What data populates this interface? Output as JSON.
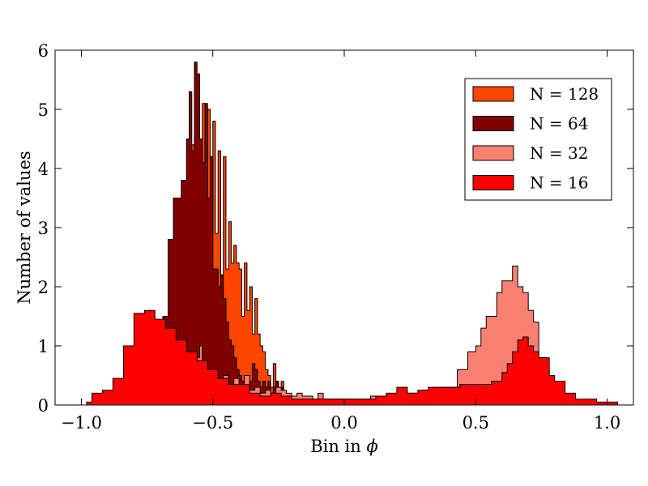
{
  "chart_data": {
    "type": "area",
    "title": "",
    "xlabel": "Bin in ",
    "xlabel_symbol": "ϕ",
    "ylabel": "Number of values",
    "xlim": [
      -1.1,
      1.1
    ],
    "ylim": [
      0,
      6
    ],
    "x_ticks": [
      -1.0,
      -0.5,
      0.0,
      0.5,
      1.0
    ],
    "x_tick_labels": [
      "−1.0",
      "−0.5",
      "0.0",
      "0.5",
      "1.0"
    ],
    "y_ticks": [
      0,
      1,
      2,
      3,
      4,
      5,
      6
    ],
    "y_tick_labels": [
      "0",
      "1",
      "2",
      "3",
      "4",
      "5",
      "6"
    ],
    "grid": false,
    "legend_position": "top-right",
    "style": "step-filled histogram",
    "series": [
      {
        "name": "N = 128",
        "color": "#ff4500",
        "points": [
          [
            -0.62,
            0.0
          ],
          [
            -0.6,
            2.2
          ],
          [
            -0.59,
            3.9
          ],
          [
            -0.58,
            4.4
          ],
          [
            -0.57,
            4.6
          ],
          [
            -0.56,
            4.1
          ],
          [
            -0.55,
            2.9
          ],
          [
            -0.54,
            5.1
          ],
          [
            -0.53,
            2.3
          ],
          [
            -0.52,
            5.0
          ],
          [
            -0.51,
            2.3
          ],
          [
            -0.5,
            4.8
          ],
          [
            -0.49,
            2.9
          ],
          [
            -0.48,
            4.3
          ],
          [
            -0.47,
            2.2
          ],
          [
            -0.46,
            4.2
          ],
          [
            -0.45,
            2.3
          ],
          [
            -0.44,
            3.1
          ],
          [
            -0.43,
            2.4
          ],
          [
            -0.42,
            2.7
          ],
          [
            -0.41,
            2.4
          ],
          [
            -0.4,
            2.3
          ],
          [
            -0.39,
            1.5
          ],
          [
            -0.38,
            2.4
          ],
          [
            -0.37,
            1.6
          ],
          [
            -0.36,
            2.0
          ],
          [
            -0.35,
            1.2
          ],
          [
            -0.34,
            1.8
          ],
          [
            -0.33,
            1.2
          ],
          [
            -0.32,
            1.0
          ],
          [
            -0.31,
            0.9
          ],
          [
            -0.3,
            0.6
          ],
          [
            -0.29,
            0.5
          ],
          [
            -0.28,
            0.3
          ],
          [
            -0.27,
            0.7
          ],
          [
            -0.26,
            0.4
          ],
          [
            -0.25,
            0.2
          ],
          [
            -0.24,
            0.4
          ],
          [
            -0.23,
            0.0
          ]
        ]
      },
      {
        "name": "N = 64",
        "color": "#800000",
        "points": [
          [
            -0.7,
            0.0
          ],
          [
            -0.69,
            1.5
          ],
          [
            -0.67,
            2.8
          ],
          [
            -0.65,
            3.5
          ],
          [
            -0.63,
            3.5
          ],
          [
            -0.62,
            3.8
          ],
          [
            -0.6,
            4.5
          ],
          [
            -0.59,
            5.3
          ],
          [
            -0.58,
            4.3
          ],
          [
            -0.57,
            5.8
          ],
          [
            -0.56,
            5.6
          ],
          [
            -0.55,
            4.5
          ],
          [
            -0.54,
            4.1
          ],
          [
            -0.53,
            5.1
          ],
          [
            -0.52,
            3.5
          ],
          [
            -0.51,
            4.2
          ],
          [
            -0.5,
            2.3
          ],
          [
            -0.49,
            2.3
          ],
          [
            -0.48,
            2.0
          ],
          [
            -0.47,
            2.2
          ],
          [
            -0.46,
            1.8
          ],
          [
            -0.45,
            1.4
          ],
          [
            -0.44,
            1.1
          ],
          [
            -0.43,
            1.0
          ],
          [
            -0.42,
            0.8
          ],
          [
            -0.41,
            0.6
          ],
          [
            -0.4,
            0.5
          ],
          [
            -0.39,
            0.4
          ],
          [
            -0.38,
            0.4
          ],
          [
            -0.37,
            0.2
          ],
          [
            -0.36,
            0.4
          ],
          [
            -0.35,
            0.7
          ],
          [
            -0.34,
            0.6
          ],
          [
            -0.33,
            0.4
          ],
          [
            -0.32,
            0.3
          ],
          [
            -0.31,
            0.4
          ],
          [
            -0.3,
            0.3
          ],
          [
            -0.29,
            0.4
          ],
          [
            -0.28,
            0.2
          ],
          [
            -0.27,
            0.3
          ],
          [
            -0.26,
            0.4
          ],
          [
            -0.25,
            0.2
          ],
          [
            -0.24,
            0.3
          ],
          [
            -0.23,
            0.0
          ]
        ]
      },
      {
        "name": "N = 32",
        "color": "#fa8072",
        "points": [
          [
            -0.75,
            0.0
          ],
          [
            -0.74,
            1.2
          ],
          [
            -0.7,
            1.1
          ],
          [
            -0.66,
            1.0
          ],
          [
            -0.62,
            0.9
          ],
          [
            -0.58,
            0.8
          ],
          [
            -0.55,
            1.0
          ],
          [
            -0.54,
            0.7
          ],
          [
            -0.52,
            0.6
          ],
          [
            -0.5,
            0.5
          ],
          [
            -0.48,
            0.3
          ],
          [
            -0.46,
            0.5
          ],
          [
            -0.44,
            0.35
          ],
          [
            -0.42,
            0.45
          ],
          [
            -0.4,
            0.3
          ],
          [
            -0.38,
            0.5
          ],
          [
            -0.36,
            0.25
          ],
          [
            -0.34,
            0.3
          ],
          [
            -0.32,
            0.2
          ],
          [
            -0.3,
            0.25
          ],
          [
            -0.28,
            0.2
          ],
          [
            -0.26,
            0.3
          ],
          [
            -0.24,
            0.25
          ],
          [
            -0.22,
            0.2
          ],
          [
            -0.2,
            0.15
          ],
          [
            -0.18,
            0.2
          ],
          [
            -0.16,
            0.15
          ],
          [
            -0.14,
            0.15
          ],
          [
            -0.12,
            0.1
          ],
          [
            -0.1,
            0.2
          ],
          [
            -0.08,
            0.1
          ],
          [
            0.0,
            0.1
          ],
          [
            0.1,
            0.15
          ],
          [
            0.2,
            0.2
          ],
          [
            0.3,
            0.25
          ],
          [
            0.36,
            0.3
          ],
          [
            0.4,
            0.3
          ],
          [
            0.43,
            0.6
          ],
          [
            0.45,
            0.6
          ],
          [
            0.47,
            0.9
          ],
          [
            0.5,
            1.0
          ],
          [
            0.52,
            1.3
          ],
          [
            0.54,
            1.5
          ],
          [
            0.56,
            1.5
          ],
          [
            0.58,
            1.9
          ],
          [
            0.6,
            2.1
          ],
          [
            0.62,
            2.1
          ],
          [
            0.64,
            2.35
          ],
          [
            0.66,
            2.0
          ],
          [
            0.68,
            1.9
          ],
          [
            0.7,
            1.6
          ],
          [
            0.72,
            1.4
          ],
          [
            0.74,
            0.8
          ],
          [
            0.76,
            0.6
          ],
          [
            0.78,
            0.0
          ]
        ]
      },
      {
        "name": "N = 16",
        "color": "#ff0000",
        "points": [
          [
            -1.02,
            0.0
          ],
          [
            -0.98,
            0.05
          ],
          [
            -0.96,
            0.2
          ],
          [
            -0.92,
            0.25
          ],
          [
            -0.88,
            0.45
          ],
          [
            -0.84,
            1.0
          ],
          [
            -0.8,
            1.55
          ],
          [
            -0.76,
            1.6
          ],
          [
            -0.72,
            1.45
          ],
          [
            -0.68,
            1.3
          ],
          [
            -0.64,
            1.1
          ],
          [
            -0.6,
            0.9
          ],
          [
            -0.56,
            0.75
          ],
          [
            -0.52,
            0.6
          ],
          [
            -0.48,
            0.45
          ],
          [
            -0.44,
            0.35
          ],
          [
            -0.4,
            0.35
          ],
          [
            -0.36,
            0.2
          ],
          [
            -0.32,
            0.15
          ],
          [
            -0.28,
            0.2
          ],
          [
            -0.24,
            0.15
          ],
          [
            -0.2,
            0.1
          ],
          [
            -0.16,
            0.1
          ],
          [
            -0.12,
            0.1
          ],
          [
            -0.08,
            0.1
          ],
          [
            -0.04,
            0.1
          ],
          [
            0.0,
            0.1
          ],
          [
            0.04,
            0.1
          ],
          [
            0.08,
            0.1
          ],
          [
            0.12,
            0.15
          ],
          [
            0.16,
            0.2
          ],
          [
            0.2,
            0.3
          ],
          [
            0.24,
            0.2
          ],
          [
            0.28,
            0.25
          ],
          [
            0.32,
            0.3
          ],
          [
            0.36,
            0.3
          ],
          [
            0.4,
            0.3
          ],
          [
            0.44,
            0.35
          ],
          [
            0.48,
            0.35
          ],
          [
            0.52,
            0.35
          ],
          [
            0.56,
            0.4
          ],
          [
            0.6,
            0.55
          ],
          [
            0.62,
            0.7
          ],
          [
            0.64,
            0.9
          ],
          [
            0.66,
            1.1
          ],
          [
            0.68,
            1.15
          ],
          [
            0.7,
            1.0
          ],
          [
            0.72,
            0.9
          ],
          [
            0.74,
            0.8
          ],
          [
            0.76,
            0.8
          ],
          [
            0.78,
            0.5
          ],
          [
            0.8,
            0.4
          ],
          [
            0.84,
            0.2
          ],
          [
            0.88,
            0.1
          ],
          [
            0.92,
            0.1
          ],
          [
            0.96,
            0.05
          ],
          [
            1.0,
            0.05
          ],
          [
            1.04,
            0.0
          ]
        ]
      }
    ],
    "draw_order": [
      "N = 128",
      "N = 64",
      "N = 32",
      "N = 16"
    ]
  }
}
